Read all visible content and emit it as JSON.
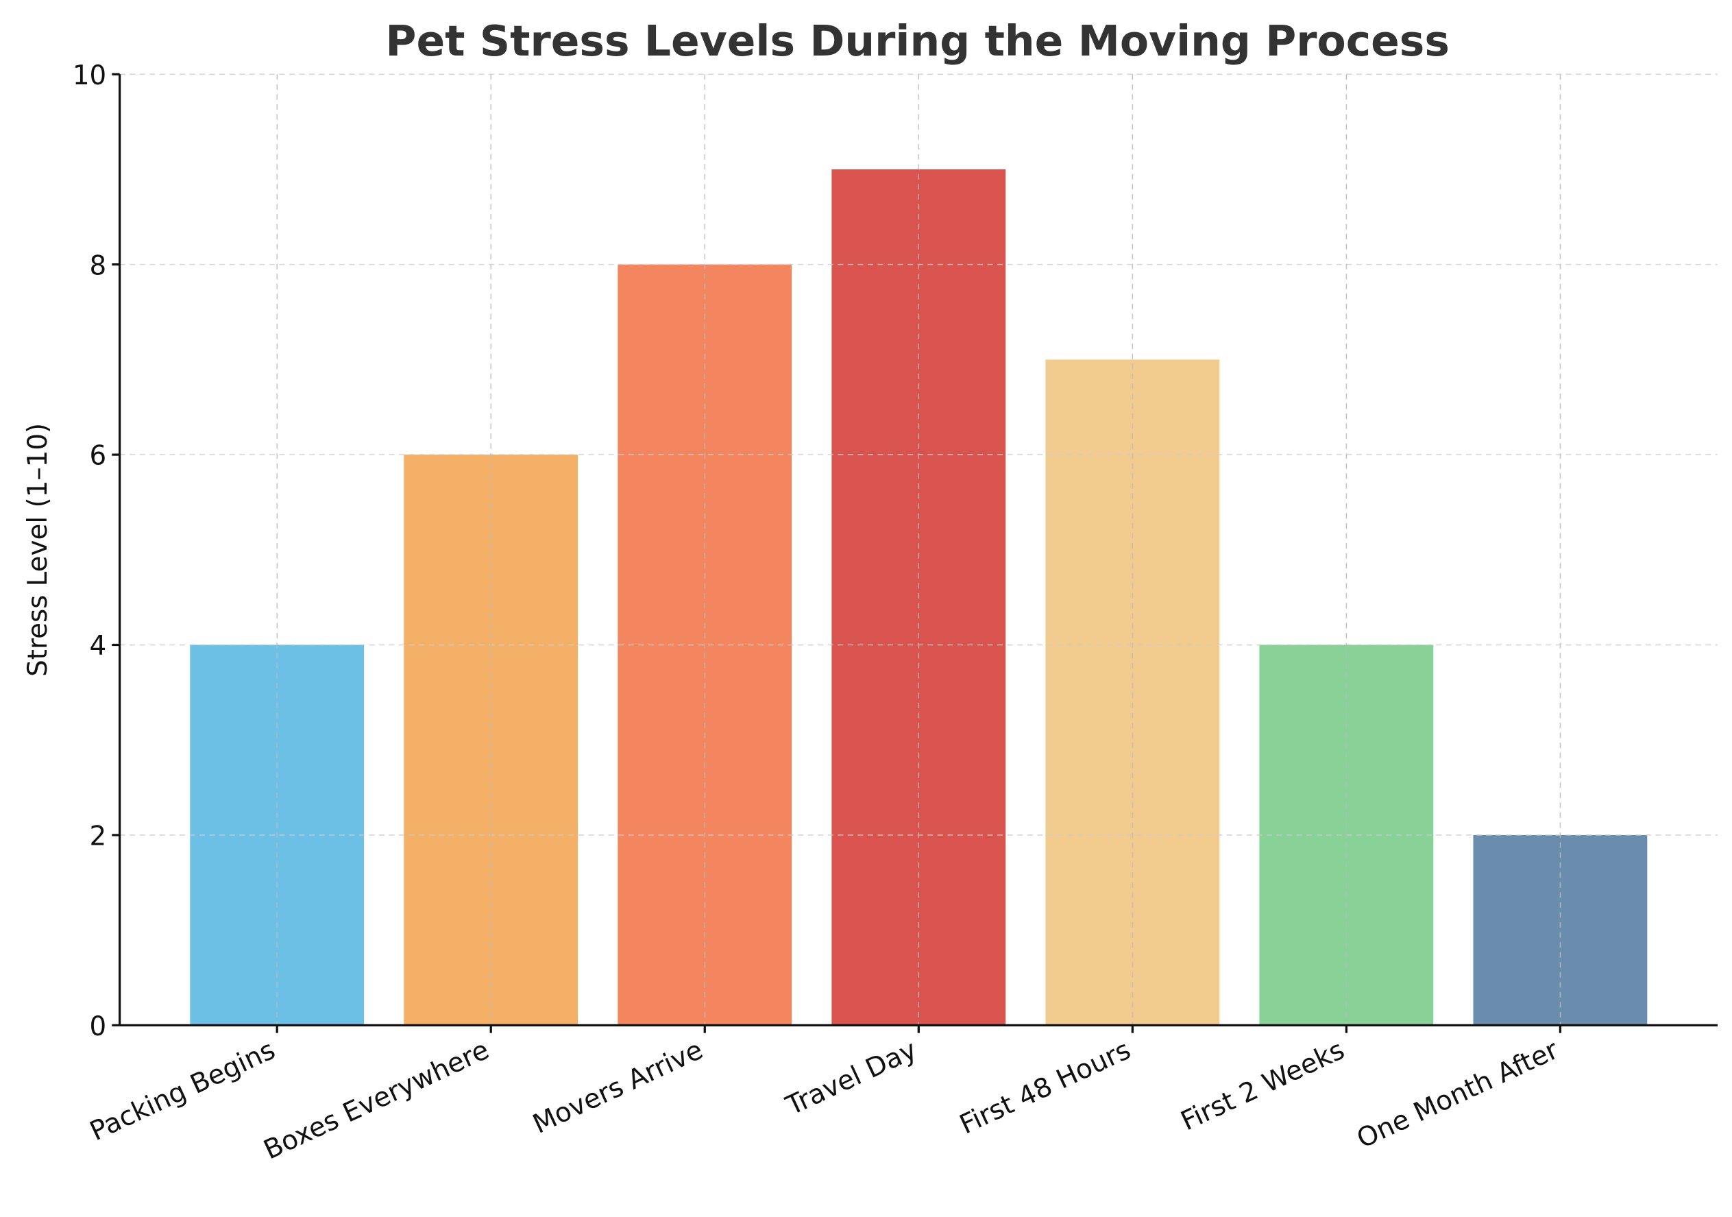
{
  "chart_data": {
    "type": "bar",
    "title": "Pet Stress Levels During the Moving Process",
    "xlabel": "",
    "ylabel": "Stress Level (1–10)",
    "categories": [
      "Packing Begins",
      "Boxes Everywhere",
      "Movers Arrive",
      "Travel Day",
      "First 48 Hours",
      "First 2 Weeks",
      "One Month After"
    ],
    "values": [
      4,
      6,
      8,
      9,
      7,
      4,
      2
    ],
    "colors": [
      "#6CC0E5",
      "#F5B068",
      "#F3865F",
      "#D9534F",
      "#F2CC8E",
      "#88D197",
      "#6A8CAD"
    ],
    "ylim": [
      0,
      10
    ],
    "yticks": [
      "0",
      "2",
      "4",
      "6",
      "8",
      "10"
    ],
    "grid": true,
    "legend": "none"
  }
}
